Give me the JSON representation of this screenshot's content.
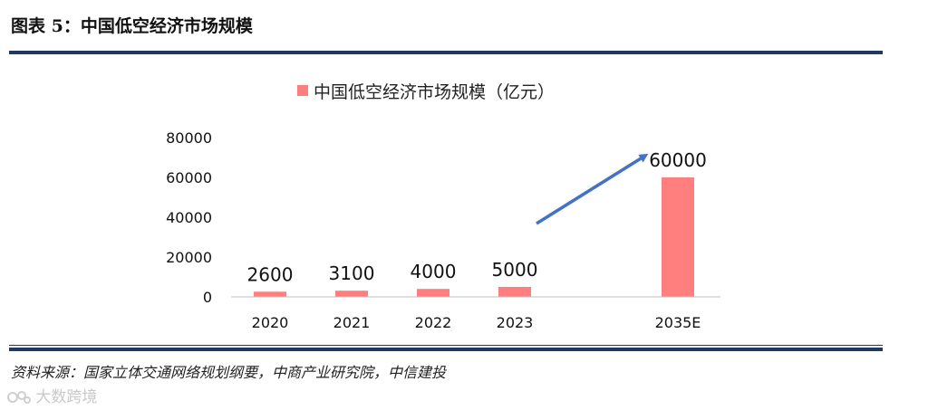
{
  "header": {
    "title": "图表 5：中国低空经济市场规模"
  },
  "footer": {
    "source": "资料来源：国家立体交通网络规划纲要，中商产业研究院，中信建投",
    "watermark": "大数跨境"
  },
  "colors": {
    "bar": "#ff7f7f",
    "arrow": "#4472c4",
    "rule": "#1f3864",
    "axis": "#bfbfbf"
  },
  "chart_data": {
    "type": "bar",
    "title": "",
    "legend": {
      "entries": [
        "中国低空经济市场规模（亿元）"
      ],
      "placement": "top-center"
    },
    "categories": [
      "2020",
      "2021",
      "2022",
      "2023",
      "2035E"
    ],
    "series": [
      {
        "name": "中国低空经济市场规模（亿元）",
        "values": [
          2600,
          3100,
          4000,
          5000,
          60000
        ]
      }
    ],
    "data_labels": [
      "2600",
      "3100",
      "4000",
      "5000",
      "60000"
    ],
    "ylim": [
      0,
      80000
    ],
    "yticks": [
      0,
      20000,
      40000,
      60000,
      80000
    ],
    "grid": false,
    "xlabel": "",
    "ylabel": "",
    "annotations": [
      {
        "type": "arrow",
        "description": "upward trend arrow toward 2035E"
      }
    ]
  }
}
